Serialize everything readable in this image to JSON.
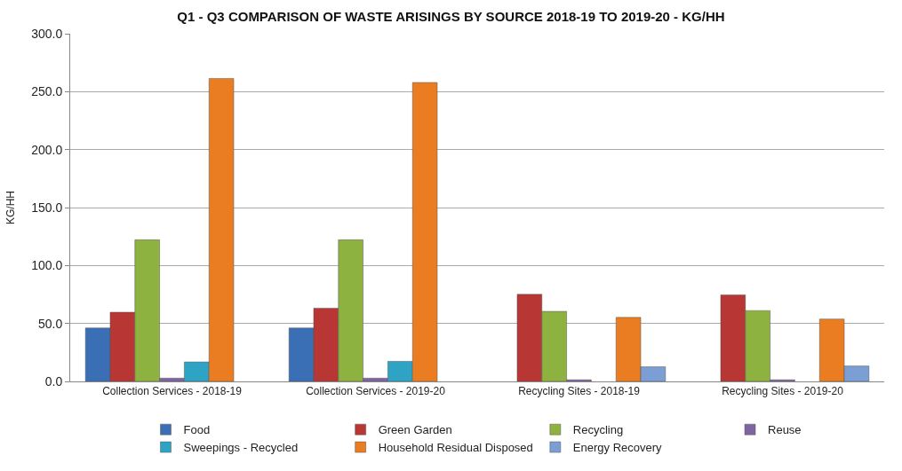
{
  "chart_data": {
    "type": "bar",
    "title": "Q1 - Q3 COMPARISON OF WASTE ARISINGS BY SOURCE 2018-19 TO 2019-20 - KG/HH",
    "ylabel": "KG/HH",
    "categories": [
      "Collection Services - 2018-19",
      "Collection Services - 2019-20",
      "Recycling Sites - 2018-19",
      "Recycling Sites - 2019-20"
    ],
    "series": [
      {
        "name": "Food",
        "color": "#3a6fb5",
        "values": [
          46.1,
          46.1,
          null,
          null
        ]
      },
      {
        "name": "Green Garden",
        "color": "#b83634",
        "values": [
          59.7,
          63.2,
          75.1,
          74.7
        ]
      },
      {
        "name": "Recycling",
        "color": "#8db23f",
        "values": [
          122.2,
          122.2,
          60.4,
          61.1
        ]
      },
      {
        "name": "Reuse",
        "color": "#8064a2",
        "values": [
          2.8,
          2.8,
          1.4,
          1.4
        ]
      },
      {
        "name": "Sweepings - Recycled",
        "color": "#2fa3c4",
        "values": [
          16.8,
          17.3,
          null,
          null
        ]
      },
      {
        "name": "Household Residual Disposed",
        "color": "#ea7d22",
        "values": [
          261.4,
          257.9,
          55.2,
          53.8
        ]
      },
      {
        "name": "Energy Recovery",
        "color": "#7b9fd4",
        "values": [
          null,
          null,
          12.6,
          13.3
        ]
      }
    ],
    "ylim": [
      0,
      300
    ],
    "yticks": [
      {
        "value": 0,
        "label": "0.0"
      },
      {
        "value": 50,
        "label": "50.0"
      },
      {
        "value": 100,
        "label": "100.0"
      },
      {
        "value": 150,
        "label": "150.0"
      },
      {
        "value": 200,
        "label": "200.0"
      },
      {
        "value": 250,
        "label": "250.0"
      },
      {
        "value": 300,
        "label": "300.0"
      }
    ],
    "grid": "y",
    "legend": "bottom"
  }
}
